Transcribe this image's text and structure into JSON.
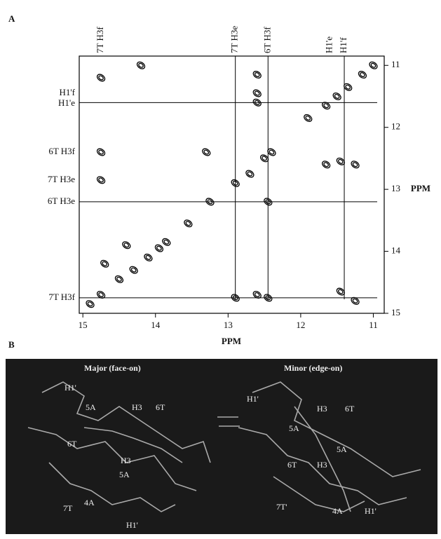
{
  "chart_data": {
    "type": "scatter",
    "panel_label": "A",
    "xlabel": "PPM",
    "ylabel": "PPM",
    "xlim": [
      15.05,
      10.85
    ],
    "ylim": [
      10.85,
      15.0
    ],
    "xticks": [
      15,
      14,
      13,
      12,
      11
    ],
    "yticks": [
      11,
      12,
      13,
      14,
      15
    ],
    "color": "#000000",
    "x": [
      14.9,
      14.75,
      14.5,
      14.3,
      14.1,
      13.95,
      13.85,
      13.55,
      13.25,
      12.9,
      12.7,
      12.5,
      12.4,
      11.65,
      11.5,
      11.35,
      11.15,
      11.0,
      14.75,
      14.75,
      14.75,
      14.7,
      13.3,
      12.6,
      12.6,
      12.6,
      12.45,
      12.9,
      12.45,
      12.6,
      11.65,
      11.45,
      11.25,
      11.25,
      11.45,
      11.9,
      14.2,
      14.4
    ],
    "values": [
      14.85,
      14.7,
      14.45,
      14.3,
      14.1,
      13.95,
      13.85,
      13.55,
      13.2,
      12.9,
      12.75,
      12.5,
      12.4,
      11.65,
      11.5,
      11.35,
      11.15,
      11.0,
      11.2,
      12.4,
      12.85,
      14.2,
      12.4,
      11.15,
      11.45,
      11.6,
      13.2,
      14.75,
      14.75,
      14.7,
      12.6,
      12.55,
      12.6,
      14.8,
      14.65,
      11.85,
      11.0,
      13.9
    ],
    "vlines": [
      12.9,
      12.45,
      11.4
    ],
    "hlines": [
      11.6,
      13.2,
      14.75
    ],
    "top_labels": [
      {
        "value": 14.75,
        "label": "7T H3f"
      },
      {
        "value": 12.9,
        "label": "7T H3e"
      },
      {
        "value": 12.45,
        "label": "6T H3f"
      },
      {
        "value": 11.6,
        "label": "H1'e"
      },
      {
        "value": 11.4,
        "label": "H1'f"
      }
    ],
    "left_labels": [
      {
        "value": 11.45,
        "label": "H1'f"
      },
      {
        "value": 11.62,
        "label": "H1'e"
      },
      {
        "value": 12.4,
        "label": "6T H3f"
      },
      {
        "value": 12.85,
        "label": "7T H3e"
      },
      {
        "value": 13.2,
        "label": "6T H3e"
      },
      {
        "value": 14.75,
        "label": "7T H3f"
      }
    ]
  },
  "panel_b": {
    "panel_label": "B",
    "major_title": "Major (face-on)",
    "minor_title": "Minor (edge-on)",
    "major_labels": [
      "H1'",
      "5A",
      "H3",
      "6T",
      "6T",
      "H3",
      "5A",
      "4A",
      "7T",
      "H1'"
    ],
    "minor_labels": [
      "H1'",
      "H3",
      "6T",
      "5A",
      "5A",
      "6T",
      "H3",
      "7T'",
      "4A",
      "H1'"
    ]
  }
}
